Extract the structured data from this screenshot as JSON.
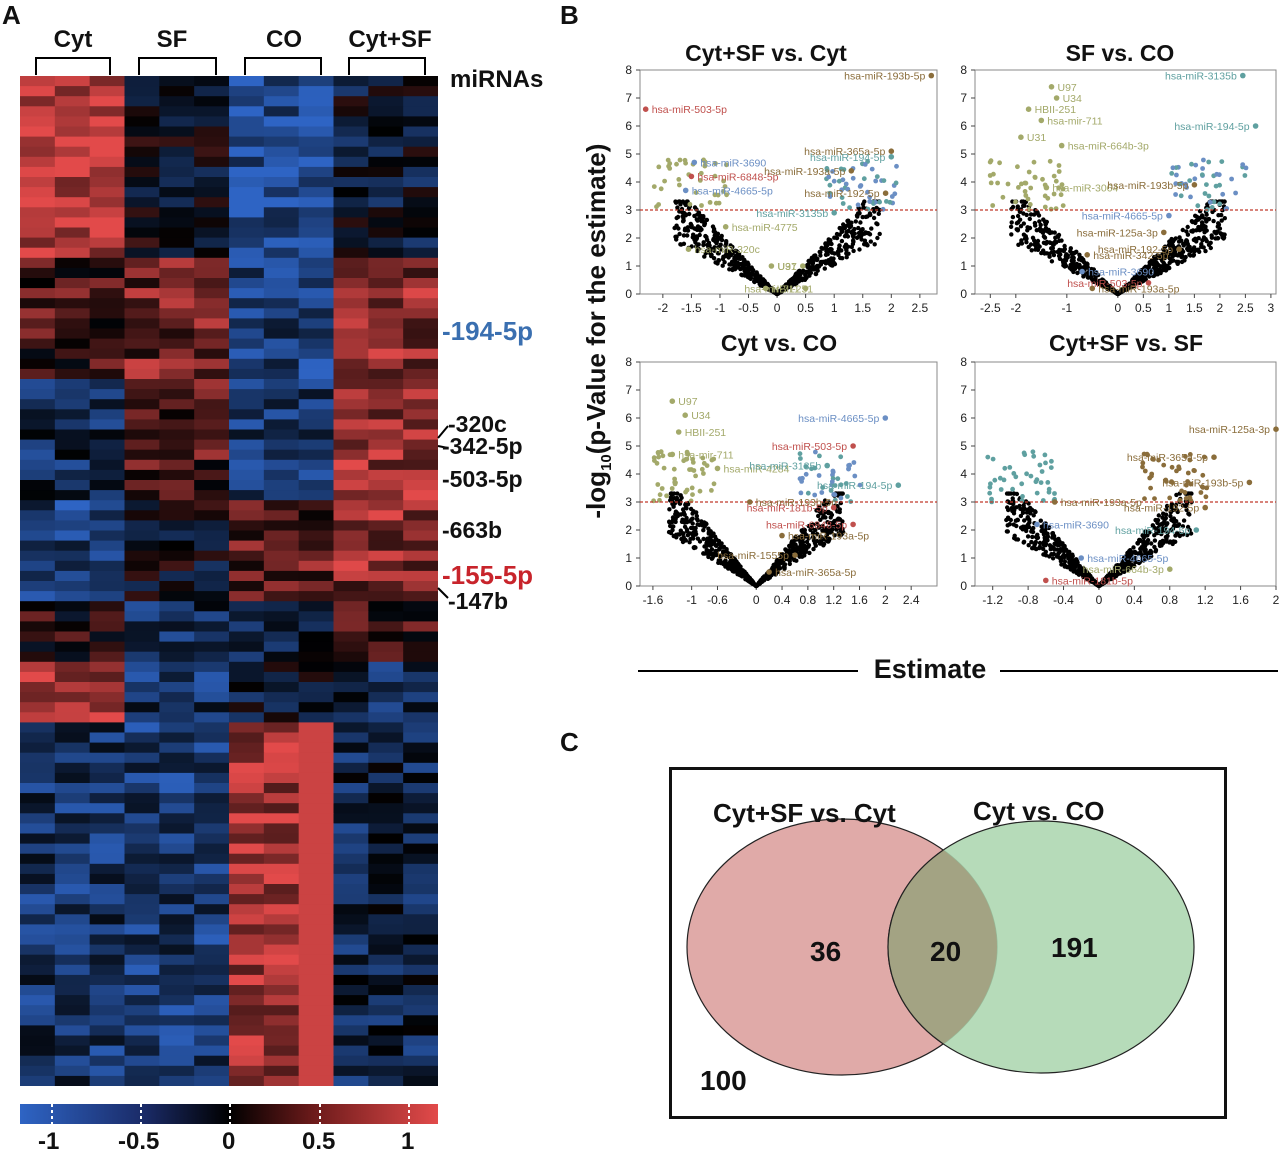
{
  "panels": {
    "a": "A",
    "b": "B",
    "c": "C"
  },
  "heatmap": {
    "groups": [
      "Cyt",
      "SF",
      "CO",
      "Cyt+SF"
    ],
    "mirnas_header": "miRNAs",
    "labels": [
      {
        "text": "-194-5p",
        "color": "#3a6fb0"
      },
      {
        "text": "-320c",
        "color": "#111111"
      },
      {
        "text": "-342-5p",
        "color": "#111111"
      },
      {
        "text": "-503-5p",
        "color": "#111111"
      },
      {
        "text": "-663b",
        "color": "#111111"
      },
      {
        "text": "-155-5p",
        "color": "#c8242b"
      },
      {
        "text": "-147b",
        "color": "#111111"
      }
    ],
    "colorbar": {
      "ticks": [
        "-1",
        "-0.5",
        "0",
        "0.5",
        "1"
      ],
      "low": "#2e64c4",
      "mid": "#000000",
      "high": "#e24a4a"
    }
  },
  "volcano": {
    "ylabel": "-log10(p-Value for the estimate)",
    "ylabel_main": "-log",
    "ylabel_sub": "10",
    "ylabel_rest": "(p-Value for the estimate)",
    "xlabel": "Estimate",
    "threshold": 3,
    "colors": {
      "olive": "#a3a96a",
      "blue": "#6b8fc4",
      "red": "#c0504d",
      "teal": "#5fa0a0",
      "brown": "#8a6d3b",
      "black": "#000000"
    }
  },
  "chart_data": [
    {
      "type": "scatter",
      "title": "Cyt+SF vs. Cyt",
      "xlabel": "Estimate",
      "ylabel": "-log10(p-Value for the estimate)",
      "xlim": [
        -2.4,
        2.8
      ],
      "ylim": [
        0,
        8
      ],
      "xticks": [
        "-2",
        "-1.5",
        "-1",
        "-0.5",
        "0",
        "0.5",
        "1",
        "1.5",
        "2",
        "2.5"
      ],
      "yticks": [
        "0",
        "1",
        "2",
        "3",
        "4",
        "5",
        "6",
        "7",
        "8"
      ],
      "points": [
        {
          "x": -2.3,
          "y": 6.6,
          "label": "hsa-miR-503-5p",
          "color": "red"
        },
        {
          "x": -1.45,
          "y": 4.7,
          "label": "hsa-miR-3690",
          "color": "blue"
        },
        {
          "x": -1.5,
          "y": 4.2,
          "label": "hsa-miR-6848-5p",
          "color": "red"
        },
        {
          "x": -1.6,
          "y": 3.7,
          "label": "hsa-miR-4665-5p",
          "color": "blue"
        },
        {
          "x": -0.9,
          "y": 2.4,
          "label": "hsa-miR-4775",
          "color": "olive"
        },
        {
          "x": -1.55,
          "y": 1.6,
          "label": "hsa-miR-320c",
          "color": "olive"
        },
        {
          "x": -0.1,
          "y": 1.0,
          "label": "U31",
          "color": "olive"
        },
        {
          "x": 0.45,
          "y": 1.0,
          "label": "U97",
          "color": "olive"
        },
        {
          "x": -0.2,
          "y": 0.2,
          "label": "HBII-251",
          "color": "olive"
        },
        {
          "x": 0.5,
          "y": 0.2,
          "label": "hsa-mir-711",
          "color": "olive"
        },
        {
          "x": 2.7,
          "y": 7.8,
          "label": "hsa-miR-193b-5p",
          "color": "brown"
        },
        {
          "x": 2.0,
          "y": 5.1,
          "label": "hsa-miR-365a-5p",
          "color": "brown"
        },
        {
          "x": 2.0,
          "y": 4.9,
          "label": "hsa-miR-194-5p",
          "color": "teal"
        },
        {
          "x": 1.3,
          "y": 4.4,
          "label": "hsa-miR-193a-5p",
          "color": "brown"
        },
        {
          "x": 1.9,
          "y": 3.6,
          "label": "hsa-miR-192-5p",
          "color": "brown"
        },
        {
          "x": 1.0,
          "y": 2.9,
          "label": "hsa-miR-3135b",
          "color": "teal"
        }
      ]
    },
    {
      "type": "scatter",
      "title": "SF vs. CO",
      "xlabel": "Estimate",
      "ylabel": "-log10(p-Value for the estimate)",
      "xlim": [
        -2.8,
        3.1
      ],
      "ylim": [
        0,
        8
      ],
      "xticks": [
        "-2.5",
        "-2",
        "-1",
        "0",
        "0.5",
        "1",
        "1.5",
        "2",
        "2.5",
        "3"
      ],
      "yticks": [
        "0",
        "1",
        "2",
        "3",
        "4",
        "5",
        "6",
        "7",
        "8"
      ],
      "points": [
        {
          "x": -1.3,
          "y": 7.4,
          "label": "U97",
          "color": "olive"
        },
        {
          "x": -1.2,
          "y": 7.0,
          "label": "U34",
          "color": "olive"
        },
        {
          "x": -1.75,
          "y": 6.6,
          "label": "HBII-251",
          "color": "olive"
        },
        {
          "x": -1.5,
          "y": 6.2,
          "label": "hsa-mir-711",
          "color": "olive"
        },
        {
          "x": -1.9,
          "y": 5.6,
          "label": "U31",
          "color": "olive"
        },
        {
          "x": -1.1,
          "y": 5.3,
          "label": "hsa-miR-664b-3p",
          "color": "olive"
        },
        {
          "x": -1.4,
          "y": 3.8,
          "label": "hsa-miR-3064",
          "color": "olive"
        },
        {
          "x": 2.45,
          "y": 7.8,
          "label": "hsa-miR-3135b",
          "color": "teal"
        },
        {
          "x": 2.7,
          "y": 6.0,
          "label": "hsa-miR-194-5p",
          "color": "teal"
        },
        {
          "x": 1.5,
          "y": 3.9,
          "label": "hsa-miR-193b-5p",
          "color": "brown"
        },
        {
          "x": 1.0,
          "y": 2.8,
          "label": "hsa-miR-4665-5p",
          "color": "blue"
        },
        {
          "x": 0.9,
          "y": 2.2,
          "label": "hsa-miR-125a-3p",
          "color": "brown"
        },
        {
          "x": 1.2,
          "y": 1.6,
          "label": "hsa-miR-192-5p",
          "color": "brown"
        },
        {
          "x": -0.6,
          "y": 1.4,
          "label": "hsa-miR-342-5p",
          "color": "brown"
        },
        {
          "x": -0.7,
          "y": 0.8,
          "label": "hsa-miR-3690",
          "color": "blue"
        },
        {
          "x": 0.6,
          "y": 0.4,
          "label": "hsa-miR-503-5p",
          "color": "red"
        },
        {
          "x": -0.5,
          "y": 0.2,
          "label": "hsa-miR-193a-5p",
          "color": "brown"
        }
      ]
    },
    {
      "type": "scatter",
      "title": "Cyt vs. CO",
      "xlabel": "Estimate",
      "ylabel": "-log10(p-Value for the estimate)",
      "xlim": [
        -1.8,
        2.8
      ],
      "ylim": [
        0,
        8
      ],
      "xticks": [
        "-1.6",
        "-1",
        "-0.6",
        "0",
        "0.4",
        "0.8",
        "1.2",
        "1.6",
        "2",
        "2.4"
      ],
      "yticks": [
        "0",
        "1",
        "2",
        "3",
        "4",
        "5",
        "6",
        "7",
        "8"
      ],
      "points": [
        {
          "x": -1.3,
          "y": 6.6,
          "label": "U97",
          "color": "olive"
        },
        {
          "x": -1.1,
          "y": 6.1,
          "label": "U34",
          "color": "olive"
        },
        {
          "x": -1.2,
          "y": 5.5,
          "label": "HBII-251",
          "color": "olive"
        },
        {
          "x": -1.3,
          "y": 4.7,
          "label": "hsa-mir-711",
          "color": "olive"
        },
        {
          "x": -0.6,
          "y": 4.2,
          "label": "hsa-miR-4284",
          "color": "olive"
        },
        {
          "x": 2.0,
          "y": 6.0,
          "label": "hsa-miR-4665-5p",
          "color": "blue"
        },
        {
          "x": 1.5,
          "y": 5.0,
          "label": "hsa-miR-503-5p",
          "color": "red"
        },
        {
          "x": 1.1,
          "y": 4.3,
          "label": "hsa-miR-3135b",
          "color": "teal"
        },
        {
          "x": 2.2,
          "y": 3.6,
          "label": "hsa-miR-194-5p",
          "color": "teal"
        },
        {
          "x": -0.1,
          "y": 3.0,
          "label": "hsa-miR-193b-5p",
          "color": "brown"
        },
        {
          "x": 1.2,
          "y": 2.8,
          "label": "hsa-miR-181b-5p",
          "color": "red"
        },
        {
          "x": 1.5,
          "y": 2.2,
          "label": "hsa-miR-6848-5p",
          "color": "red"
        },
        {
          "x": 0.4,
          "y": 1.8,
          "label": "hsa-miR-193a-5p",
          "color": "brown"
        },
        {
          "x": 0.6,
          "y": 1.1,
          "label": "hsa-miR-1555p",
          "color": "brown"
        },
        {
          "x": 0.2,
          "y": 0.5,
          "label": "hsa-miR-365a-5p",
          "color": "brown"
        }
      ]
    },
    {
      "type": "scatter",
      "title": "Cyt+SF vs. SF",
      "xlabel": "Estimate",
      "ylabel": "-log10(p-Value for the estimate)",
      "xlim": [
        -1.4,
        2.0
      ],
      "ylim": [
        0,
        8
      ],
      "xticks": [
        "-1.2",
        "-0.8",
        "-0.4",
        "0",
        "0.4",
        "0.8",
        "1.2",
        "1.6",
        "2"
      ],
      "yticks": [
        "0",
        "1",
        "2",
        "3",
        "4",
        "5",
        "6",
        "7",
        "8"
      ],
      "points": [
        {
          "x": 2.0,
          "y": 5.6,
          "label": "hsa-miR-125a-3p",
          "color": "brown"
        },
        {
          "x": 1.3,
          "y": 4.6,
          "label": "hsa-miR-365a-5p",
          "color": "brown"
        },
        {
          "x": 1.7,
          "y": 3.7,
          "label": "hsa-miR-193b-5p",
          "color": "brown"
        },
        {
          "x": 1.2,
          "y": 2.8,
          "label": "hsa-miR-192-5p",
          "color": "brown"
        },
        {
          "x": 1.1,
          "y": 2.0,
          "label": "hsa-miR-194-5p",
          "color": "teal"
        },
        {
          "x": -0.5,
          "y": 3.0,
          "label": "hsa-miR-193a-5p",
          "color": "brown"
        },
        {
          "x": -0.7,
          "y": 2.2,
          "label": "hsa-miR-3690",
          "color": "blue"
        },
        {
          "x": -0.2,
          "y": 1.0,
          "label": "hsa-miR-4665-5p",
          "color": "blue"
        },
        {
          "x": -0.6,
          "y": 0.2,
          "label": "hsa-miR-181b-5p",
          "color": "red"
        },
        {
          "x": 0.8,
          "y": 0.6,
          "label": "hsa-miR-664b-3p",
          "color": "olive"
        }
      ]
    },
    {
      "type": "venn",
      "sets": [
        {
          "name": "Cyt+SF vs. Cyt",
          "only": 36,
          "color": "#e0aaa8"
        },
        {
          "name": "Cyt vs. CO",
          "only": 191,
          "color": "#a9d5ad"
        }
      ],
      "intersection": 20,
      "outside": 100
    }
  ]
}
